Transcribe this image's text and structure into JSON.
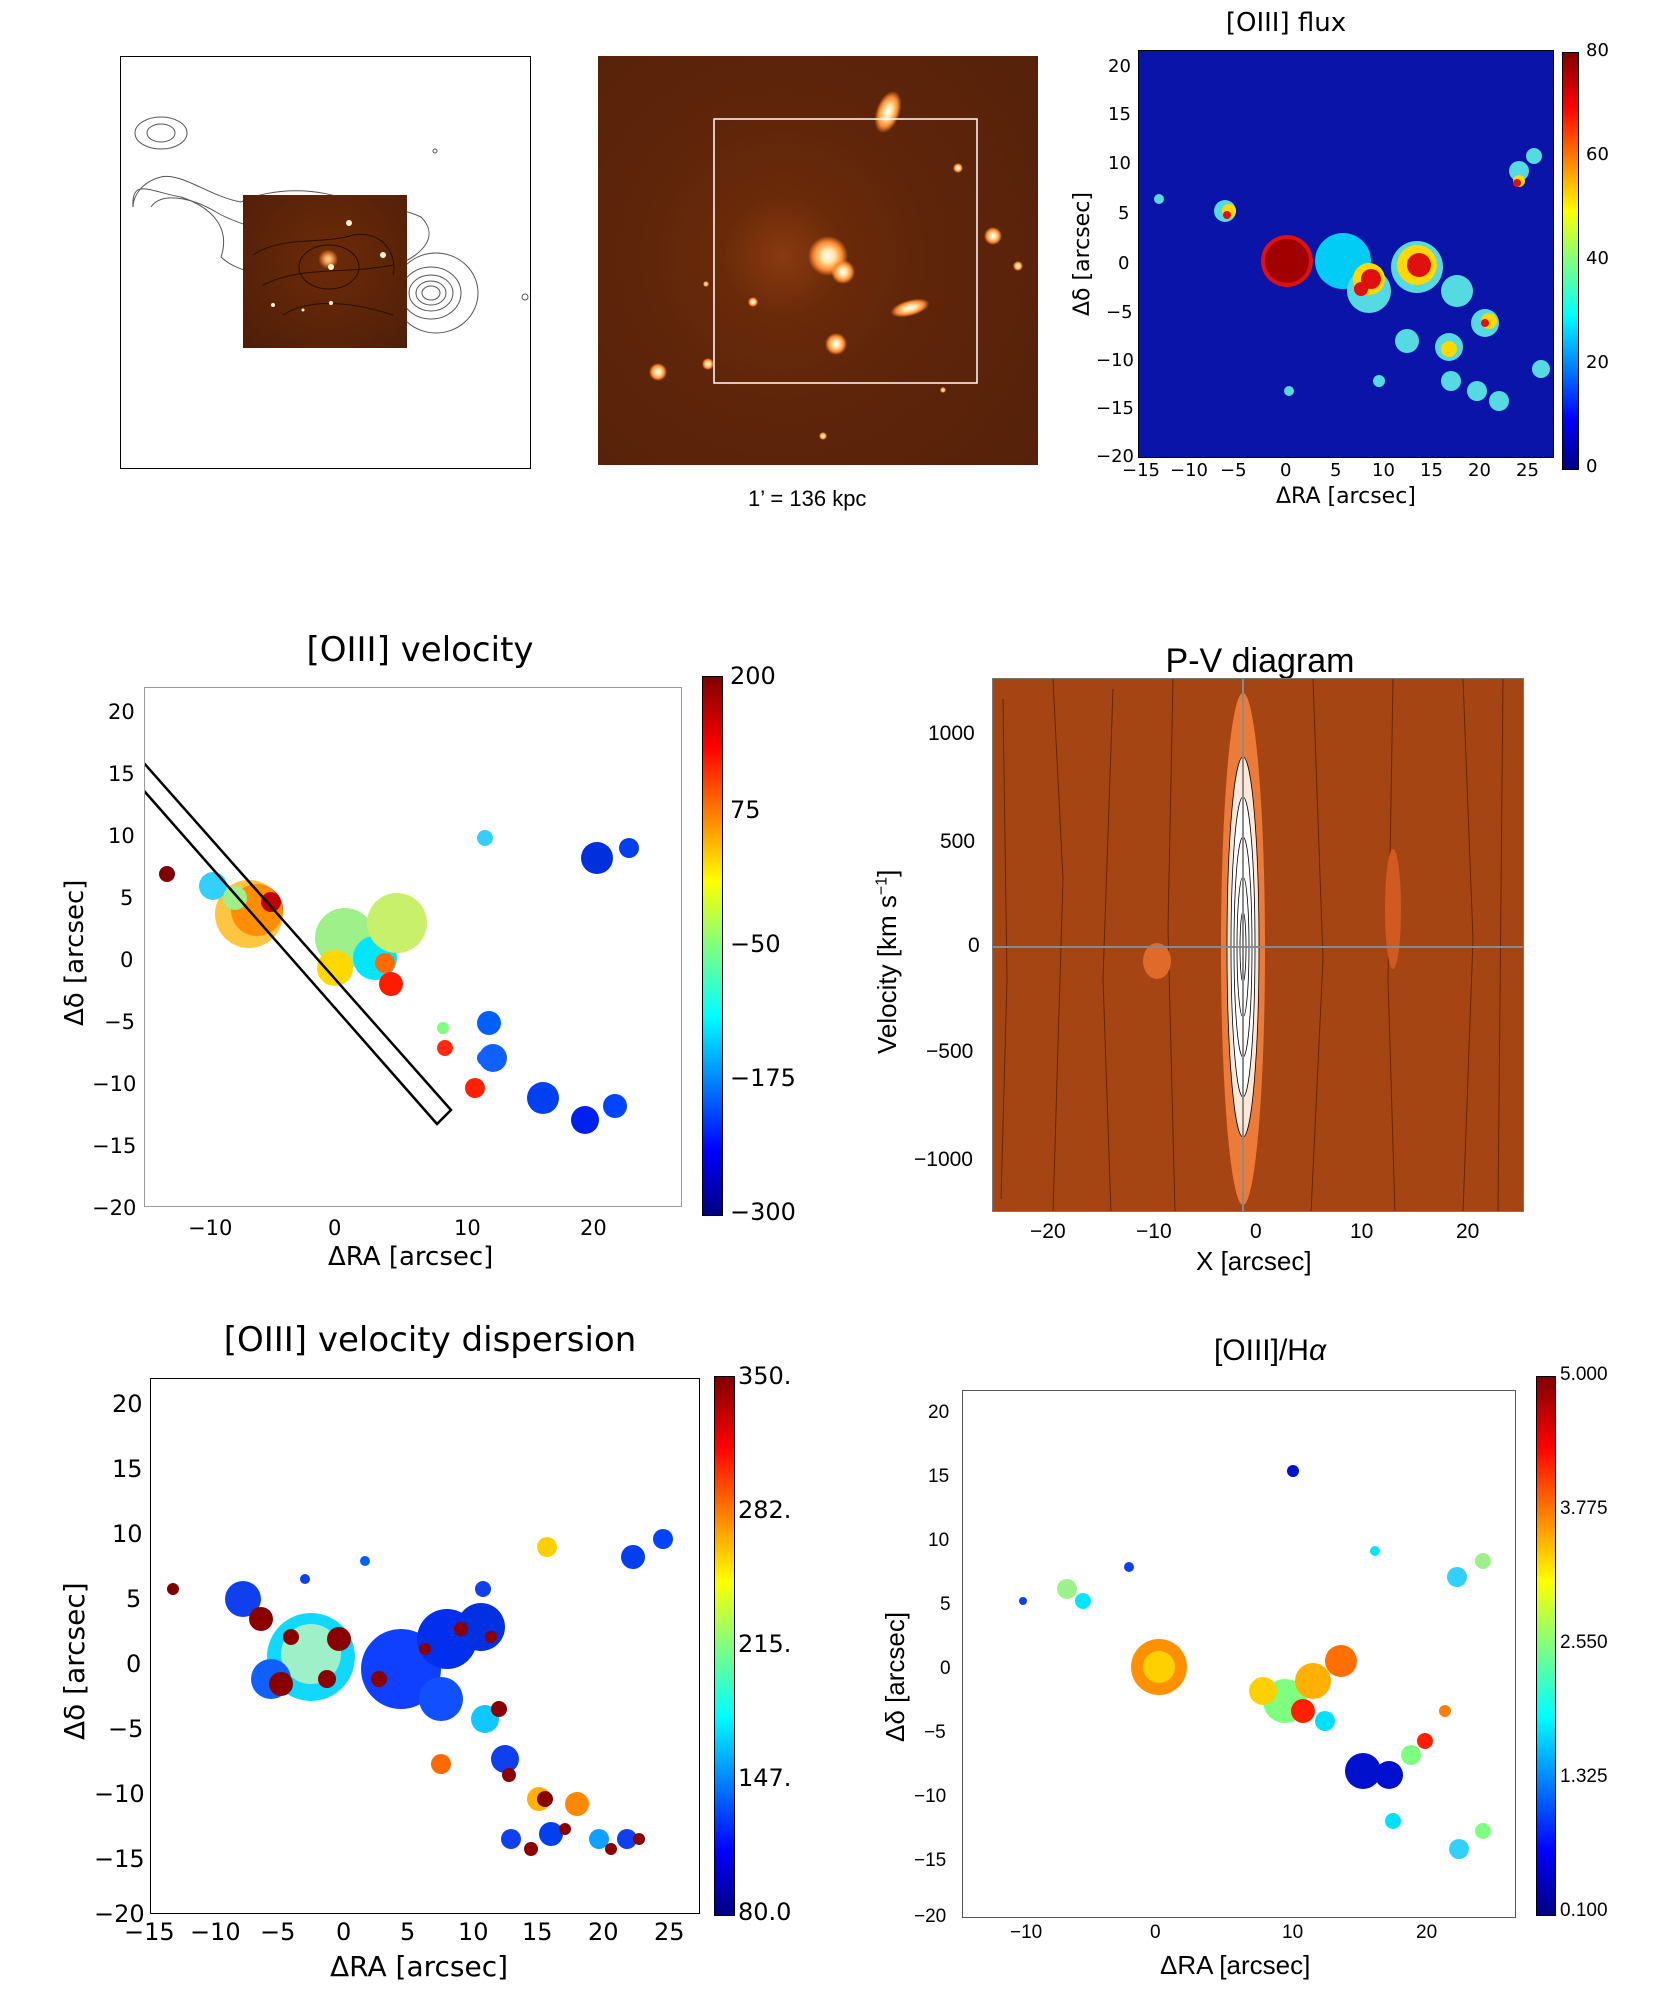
{
  "panel_scale": {
    "caption": "1’ = 136 kpc"
  },
  "flux": {
    "title": "[OIII] flux",
    "xlabel": "ΔRA [arcsec]",
    "ylabel": "Δδ [arcsec]",
    "xticks": [
      "−15",
      "−10",
      "−5",
      "0",
      "5",
      "10",
      "15",
      "20",
      "25"
    ],
    "yticks": [
      "20",
      "15",
      "10",
      "5",
      "0",
      "−5",
      "−10",
      "−15",
      "−20"
    ],
    "cbar_ticks": [
      "80",
      "60",
      "40",
      "20",
      "0"
    ]
  },
  "velocity": {
    "title": "[OIII] velocity",
    "xlabel": "ΔRA [arcsec]",
    "ylabel": "Δδ [arcsec]",
    "xticks": [
      "−10",
      "0",
      "10",
      "20"
    ],
    "yticks": [
      "20",
      "15",
      "10",
      "5",
      "0",
      "−5",
      "−10",
      "−15",
      "−20"
    ],
    "cbar_ticks": [
      "200",
      "75",
      "−50",
      "−175",
      "−300"
    ]
  },
  "pv": {
    "title": "P-V diagram",
    "xlabel": "X [arcsec]",
    "ylabel": "Velocity [km s",
    "ylabel_sup": "−1",
    "ylabel_end": "]",
    "xticks": [
      "−20",
      "−10",
      "0",
      "10",
      "20"
    ],
    "yticks": [
      "1000",
      "500",
      "0",
      "−500",
      "−1000"
    ]
  },
  "dispersion": {
    "title": "[OIII] velocity dispersion",
    "xlabel": "ΔRA [arcsec]",
    "ylabel": "Δδ [arcsec]",
    "xticks": [
      "−15",
      "−10",
      "−5",
      "0",
      "5",
      "10",
      "15",
      "20",
      "25"
    ],
    "yticks": [
      "20",
      "15",
      "10",
      "5",
      "0",
      "−5",
      "−10",
      "−15",
      "−20"
    ],
    "cbar_ticks": [
      "350.",
      "282.",
      "215.",
      "147.",
      "80.0"
    ]
  },
  "ratio": {
    "title": "[OIII]/H",
    "title_greek": "α",
    "xlabel": "ΔRA [arcsec]",
    "ylabel": "Δδ [arcsec]",
    "xticks": [
      "−10",
      "0",
      "10",
      "20"
    ],
    "yticks": [
      "20",
      "15",
      "10",
      "5",
      "0",
      "−5",
      "−10",
      "−15",
      "−20"
    ],
    "cbar_ticks": [
      "5.000",
      "3.775",
      "2.550",
      "1.325",
      "0.100"
    ]
  }
}
